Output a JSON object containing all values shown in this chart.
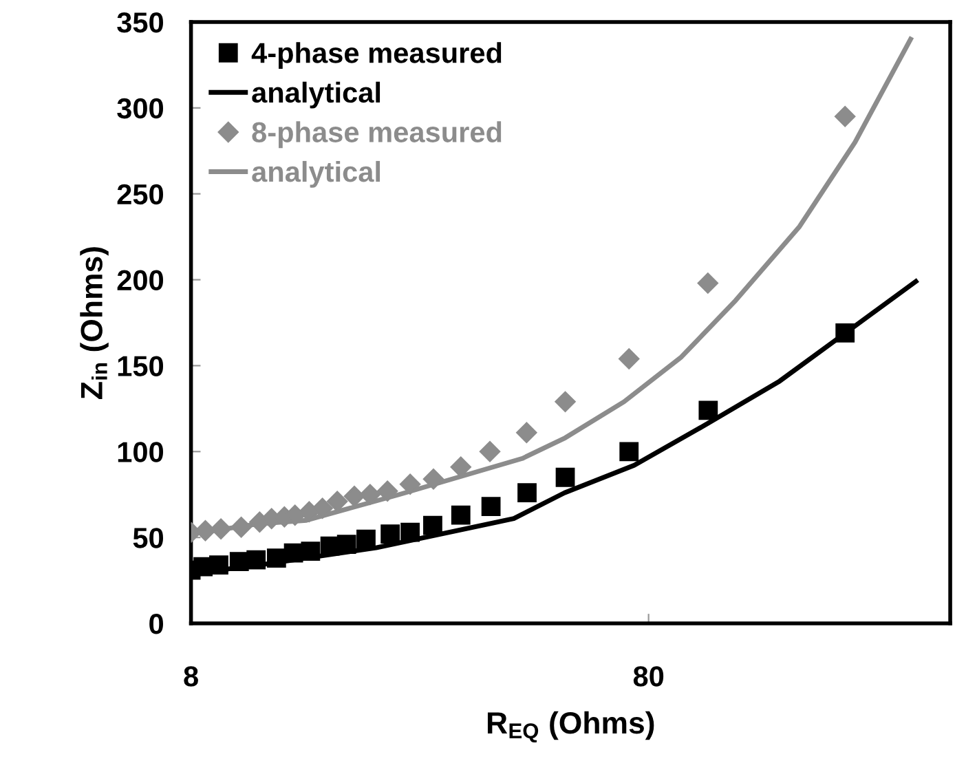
{
  "chart_data": {
    "type": "scatter",
    "xlabel": "R$_{EQ}$ (Ohms)",
    "ylabel": "Z$_{in}$ (Ohms)",
    "log": "x",
    "xlim": [
      8,
      365
    ],
    "xticks": [
      8,
      80
    ],
    "ylim": [
      0,
      350
    ],
    "yticks": [
      0,
      50,
      100,
      150,
      200,
      250,
      300,
      350
    ],
    "grid": false,
    "legend": "top left",
    "series": [
      {
        "name": "4-phase measured",
        "marker": "square",
        "color": "#000000",
        "x": [
          8.0,
          8.5,
          9.2,
          10.2,
          11.1,
          12.3,
          13.4,
          14.6,
          16.1,
          17.5,
          19.3,
          21.8,
          24.1,
          27.0,
          31.1,
          36.2,
          43.4,
          52.6,
          72.5,
          108,
          215
        ],
        "values": [
          31,
          33,
          34,
          36,
          37,
          38,
          41,
          42,
          45,
          46,
          49,
          52,
          53,
          57,
          63,
          68,
          76,
          85,
          100,
          124,
          169
        ]
      },
      {
        "name": "analytical",
        "type": "line",
        "marker": "none",
        "color": "#000000",
        "x": [
          8,
          11.3,
          20.3,
          40.6,
          52.4,
          74.4,
          107.2,
          154.7,
          215.4,
          307
        ],
        "values": [
          29,
          34,
          44,
          61,
          76,
          92,
          116,
          141,
          169,
          199
        ]
      },
      {
        "name": "8-phase measured",
        "marker": "diamond",
        "color": "#8c8c8c",
        "x": [
          8.0,
          8.6,
          9.3,
          10.3,
          11.3,
          12.0,
          12.8,
          13.5,
          14.5,
          15.5,
          16.7,
          18.2,
          19.7,
          21.5,
          24.1,
          27.1,
          31.1,
          36.0,
          43.3,
          52.6,
          72.5,
          107.8,
          215
        ],
        "values": [
          53,
          54,
          55,
          56,
          59,
          61,
          62,
          63,
          65,
          67,
          71,
          74,
          75,
          77,
          81,
          84,
          91,
          100,
          111,
          129,
          154,
          198,
          295
        ]
      },
      {
        "name": "analytical",
        "type": "line",
        "marker": "none",
        "color": "#8c8c8c",
        "x": [
          8,
          11.3,
          14.3,
          22.8,
          42.4,
          52.6,
          70.7,
          94.3,
          124,
          171,
          226,
          299
        ],
        "values": [
          52,
          58,
          60,
          75,
          96,
          108,
          129,
          155,
          188,
          231,
          280,
          340
        ]
      }
    ]
  }
}
